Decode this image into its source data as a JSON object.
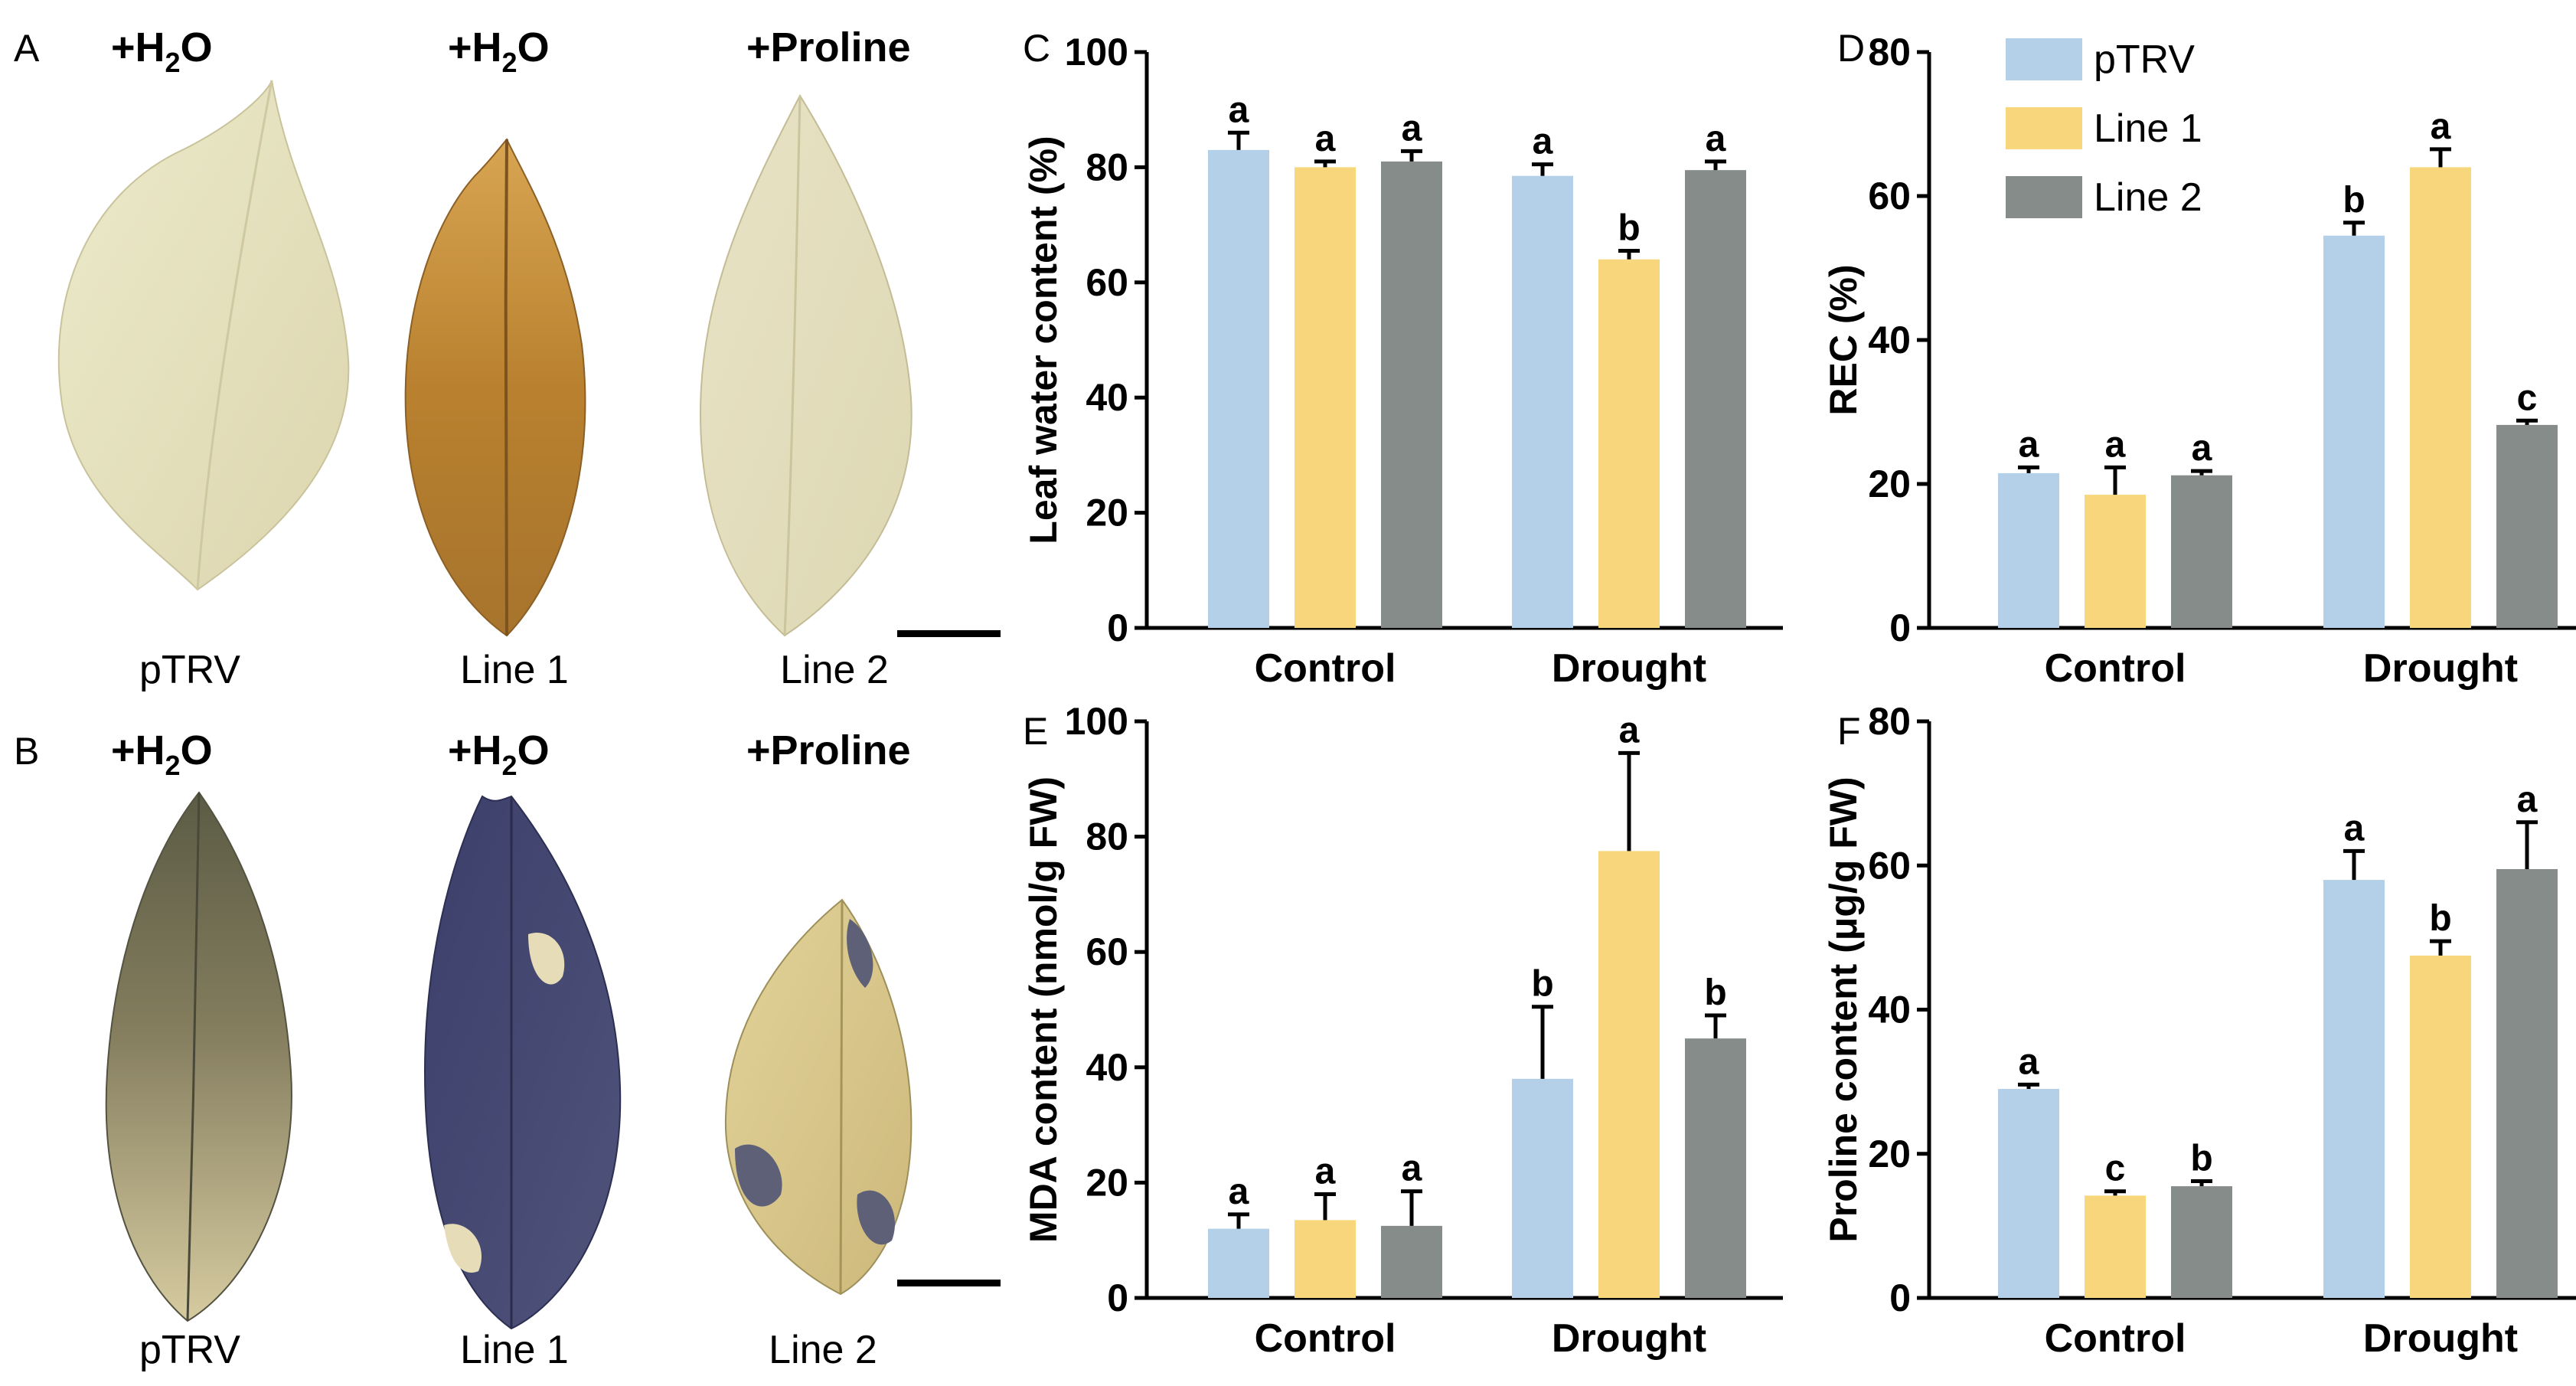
{
  "photos": {
    "panel_a": {
      "letter": "A",
      "leaves": [
        {
          "treatment": "+H",
          "sub": "2",
          "treatment_end": "O",
          "label": "pTRV"
        },
        {
          "treatment": "+H",
          "sub": "2",
          "treatment_end": "O",
          "label": "Line 1"
        },
        {
          "treatment": "+Proline",
          "sub": "",
          "treatment_end": "",
          "label": "Line 2"
        }
      ]
    },
    "panel_b": {
      "letter": "B",
      "leaves": [
        {
          "treatment": "+H",
          "sub": "2",
          "treatment_end": "O",
          "label": "pTRV"
        },
        {
          "treatment": "+H",
          "sub": "2",
          "treatment_end": "O",
          "label": "Line 1"
        },
        {
          "treatment": "+Proline",
          "sub": "",
          "treatment_end": "",
          "label": "Line 2"
        }
      ]
    }
  },
  "colors": {
    "pTRV": "#b4cfe8",
    "Line 1": "#f8d67c",
    "Line 2": "#858c8a",
    "error_bar": "#000000"
  },
  "chart_data": [
    {
      "panel": "C",
      "type": "bar",
      "categories": [
        "Control",
        "Drought"
      ],
      "ylabel": "Leaf water content (%)",
      "ylim": [
        0,
        100
      ],
      "yticks": [
        0,
        20,
        40,
        60,
        80,
        100
      ],
      "legend": [],
      "series": [
        {
          "name": "pTRV",
          "values": [
            83,
            78.5
          ],
          "errors": [
            3,
            2
          ],
          "letters": [
            "a",
            "a"
          ]
        },
        {
          "name": "Line 1",
          "values": [
            80,
            64
          ],
          "errors": [
            1,
            1.5
          ],
          "letters": [
            "a",
            "b"
          ]
        },
        {
          "name": "Line 2",
          "values": [
            81,
            79.5
          ],
          "errors": [
            1.8,
            1.5
          ],
          "letters": [
            "a",
            "a"
          ]
        }
      ]
    },
    {
      "panel": "D",
      "type": "bar",
      "categories": [
        "Control",
        "Drought"
      ],
      "ylabel": "REC (%)",
      "ylim": [
        0,
        80
      ],
      "yticks": [
        0,
        20,
        40,
        60,
        80
      ],
      "legend": [
        "pTRV",
        "Line 1",
        "Line 2"
      ],
      "series": [
        {
          "name": "pTRV",
          "values": [
            21.5,
            54.5
          ],
          "errors": [
            0.8,
            1.8
          ],
          "letters": [
            "a",
            "b"
          ]
        },
        {
          "name": "Line 1",
          "values": [
            18.5,
            64
          ],
          "errors": [
            3.8,
            2.5
          ],
          "letters": [
            "a",
            "a"
          ]
        },
        {
          "name": "Line 2",
          "values": [
            21.2,
            28.2
          ],
          "errors": [
            0.6,
            0.6
          ],
          "letters": [
            "a",
            "c"
          ]
        }
      ]
    },
    {
      "panel": "E",
      "type": "bar",
      "categories": [
        "Control",
        "Drought"
      ],
      "ylabel": "MDA content (nmol/g FW)",
      "ylim": [
        0,
        100
      ],
      "yticks": [
        0,
        20,
        40,
        60,
        80,
        100
      ],
      "legend": [],
      "series": [
        {
          "name": "pTRV",
          "values": [
            12,
            38
          ],
          "errors": [
            2.5,
            12.5
          ],
          "letters": [
            "a",
            "b"
          ]
        },
        {
          "name": "Line 1",
          "values": [
            13.5,
            77.5
          ],
          "errors": [
            4.5,
            17
          ],
          "letters": [
            "a",
            "a"
          ]
        },
        {
          "name": "Line 2",
          "values": [
            12.5,
            45
          ],
          "errors": [
            6,
            4
          ],
          "letters": [
            "a",
            "b"
          ]
        }
      ]
    },
    {
      "panel": "F",
      "type": "bar",
      "categories": [
        "Control",
        "Drought"
      ],
      "ylabel": "Proline content (μg/g FW)",
      "ylim": [
        0,
        80
      ],
      "yticks": [
        0,
        20,
        40,
        60,
        80
      ],
      "legend": [],
      "series": [
        {
          "name": "pTRV",
          "values": [
            29,
            58
          ],
          "errors": [
            0.6,
            4
          ],
          "letters": [
            "a",
            "a"
          ]
        },
        {
          "name": "Line 1",
          "values": [
            14.2,
            47.5
          ],
          "errors": [
            0.6,
            2
          ],
          "letters": [
            "c",
            "b"
          ]
        },
        {
          "name": "Line 2",
          "values": [
            15.5,
            59.5
          ],
          "errors": [
            0.7,
            6.5
          ],
          "letters": [
            "b",
            "a"
          ]
        }
      ]
    }
  ]
}
